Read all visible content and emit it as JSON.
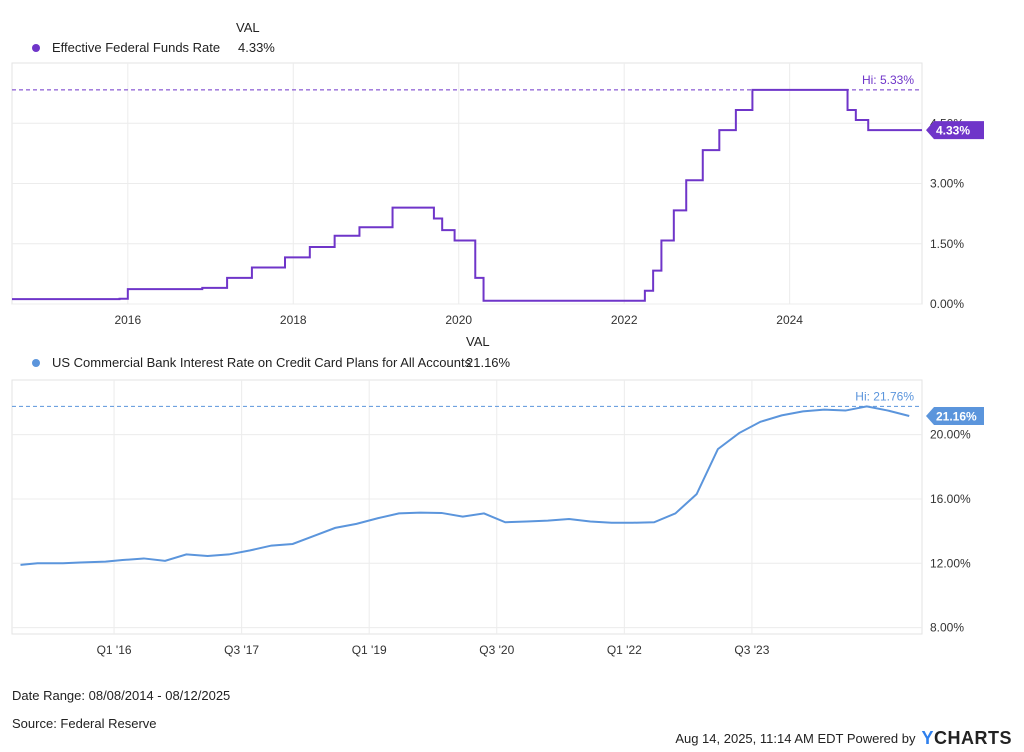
{
  "chart_data": [
    {
      "type": "line",
      "legend_header": "VAL",
      "series": [
        {
          "name": "Effective Federal Funds Rate",
          "color": "#6f35c9",
          "current_value": "4.33%",
          "x": [
            2014.6,
            2015.9,
            2016.0,
            2016.9,
            2017.2,
            2017.5,
            2017.9,
            2018.2,
            2018.5,
            2018.8,
            2019.2,
            2019.5,
            2019.7,
            2019.8,
            2019.95,
            2020.15,
            2020.2,
            2020.3,
            2021.5,
            2022.15,
            2022.25,
            2022.35,
            2022.45,
            2022.6,
            2022.75,
            2022.95,
            2023.15,
            2023.35,
            2023.55,
            2024.65,
            2024.7,
            2024.8,
            2024.95,
            2025.6
          ],
          "y": [
            0.12,
            0.13,
            0.37,
            0.4,
            0.65,
            0.91,
            1.16,
            1.42,
            1.7,
            1.91,
            2.4,
            2.4,
            2.13,
            1.84,
            1.58,
            1.58,
            0.65,
            0.08,
            0.08,
            0.08,
            0.33,
            0.83,
            1.58,
            2.33,
            3.08,
            3.83,
            4.33,
            4.83,
            5.33,
            5.33,
            4.83,
            4.58,
            4.33,
            4.33
          ],
          "high_label": "Hi: 5.33%",
          "high_value": 5.33,
          "end_label": "4.33%",
          "end_value": 4.33
        }
      ],
      "x_ticks": [
        "2016",
        "2018",
        "2020",
        "2022",
        "2024"
      ],
      "x_tick_values": [
        2016,
        2018,
        2020,
        2022,
        2024
      ],
      "xlim": [
        2014.6,
        2025.6
      ],
      "y_ticks": [
        "0.00%",
        "1.50%",
        "3.00%",
        "4.50%"
      ],
      "y_tick_values": [
        0,
        1.5,
        3.0,
        4.5
      ],
      "ylim": [
        0,
        6
      ],
      "grid": true
    },
    {
      "type": "line",
      "legend_header": "VAL",
      "series": [
        {
          "name": "US Commercial Bank Interest Rate on Credit Card Plans for All Accounts",
          "color": "#5b95dc",
          "current_value": "21.16%",
          "x": [
            2014.9,
            2015.1,
            2015.4,
            2015.6,
            2015.9,
            2016.1,
            2016.35,
            2016.6,
            2016.85,
            2017.1,
            2017.35,
            2017.6,
            2017.85,
            2018.1,
            2018.35,
            2018.6,
            2018.85,
            2019.1,
            2019.35,
            2019.6,
            2019.85,
            2020.1,
            2020.35,
            2020.6,
            2020.85,
            2021.1,
            2021.35,
            2021.6,
            2021.85,
            2022.1,
            2022.35,
            2022.6,
            2022.85,
            2023.1,
            2023.35,
            2023.6,
            2023.85,
            2024.1,
            2024.35,
            2024.6,
            2024.85,
            2025.1,
            2025.35
          ],
          "y": [
            11.9,
            12.0,
            12.0,
            12.05,
            12.1,
            12.2,
            12.3,
            12.15,
            12.55,
            12.45,
            12.55,
            12.8,
            13.1,
            13.2,
            13.7,
            14.2,
            14.45,
            14.8,
            15.1,
            15.15,
            15.13,
            14.9,
            15.1,
            14.55,
            14.6,
            14.65,
            14.75,
            14.6,
            14.52,
            14.52,
            14.55,
            15.1,
            16.3,
            19.1,
            20.1,
            20.8,
            21.2,
            21.45,
            21.56,
            21.5,
            21.76,
            21.5,
            21.16
          ],
          "high_label": "Hi: 21.76%",
          "high_value": 21.76,
          "end_label": "21.16%",
          "end_value": 21.16
        }
      ],
      "x_ticks": [
        "Q1 '16",
        "Q3 '17",
        "Q1 '19",
        "Q3 '20",
        "Q1 '22",
        "Q3 '23"
      ],
      "x_tick_values": [
        2016.0,
        2017.5,
        2019.0,
        2020.5,
        2022.0,
        2023.5
      ],
      "xlim": [
        2014.8,
        2025.5
      ],
      "y_ticks": [
        "8.00%",
        "12.00%",
        "16.00%",
        "20.00%"
      ],
      "y_tick_values": [
        8,
        12,
        16,
        20
      ],
      "ylim": [
        7.6,
        23.4
      ],
      "grid": true
    }
  ],
  "footer": {
    "date_range": "Date Range: 08/08/2014 - 08/12/2025",
    "source": "Source: Federal Reserve",
    "timestamp": "Aug 14, 2025, 11:14 AM EDT Powered by",
    "brand_y": "Y",
    "brand_rest": "CHARTS"
  }
}
